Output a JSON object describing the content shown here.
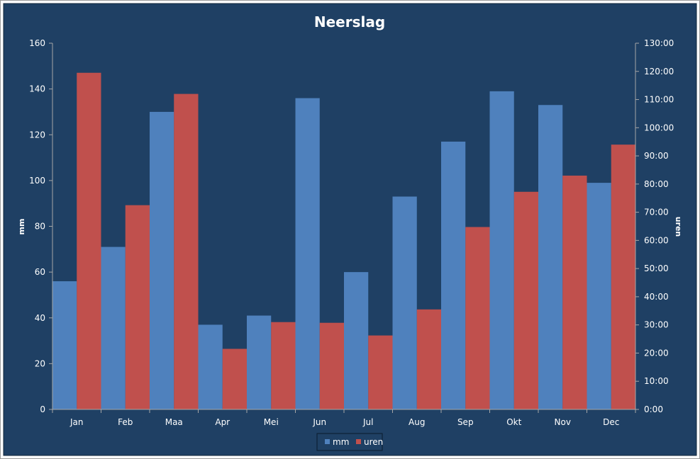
{
  "chart_data": {
    "type": "bar",
    "title": "Neerslag",
    "categories": [
      "Jan",
      "Feb",
      "Maa",
      "Apr",
      "Mei",
      "Jun",
      "Jul",
      "Aug",
      "Sep",
      "Okt",
      "Nov",
      "Dec"
    ],
    "series": [
      {
        "name": "mm",
        "axis": "left",
        "color": "#4f81bd",
        "values": [
          56,
          71,
          130,
          37,
          41,
          136,
          60,
          93,
          117,
          139,
          133,
          99
        ]
      },
      {
        "name": "uren",
        "axis": "right",
        "color": "#c0504d",
        "values": [
          119.5,
          72.5,
          112,
          21.5,
          31,
          30.75,
          26.25,
          35.5,
          64.75,
          77.25,
          83,
          94
        ]
      }
    ],
    "ylabel": "mm",
    "y2label": "uren",
    "ylim": [
      0,
      160
    ],
    "y2lim": [
      0,
      130
    ],
    "yticks": [
      "0",
      "20",
      "40",
      "60",
      "80",
      "100",
      "120",
      "140",
      "160"
    ],
    "y2ticks": [
      "0:00",
      "10:00",
      "20:00",
      "30:00",
      "40:00",
      "50:00",
      "60:00",
      "70:00",
      "80:00",
      "90:00",
      "100:00",
      "110:00",
      "120:00",
      "130:00"
    ],
    "legend_position": "bottom",
    "grid": false,
    "colors": {
      "background": "#1f4064",
      "frame": "#ffffff",
      "axis": "#a6a6a6",
      "text": "#ffffff"
    }
  }
}
